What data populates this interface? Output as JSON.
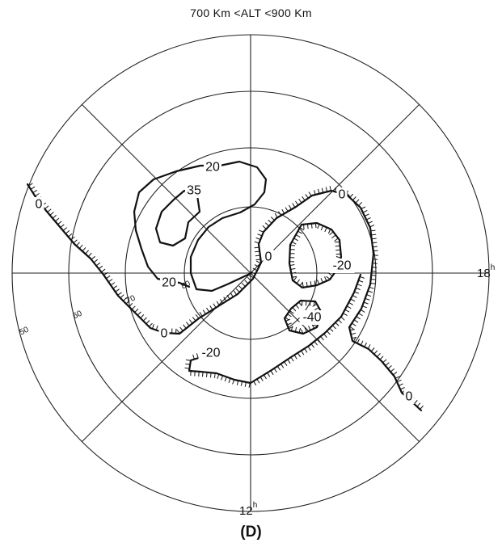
{
  "title": "700 Km <ALT <900 Km",
  "panel_label": "(D)",
  "chart_data": {
    "type": "contour",
    "projection": "polar",
    "latitude_rings": [
      "50",
      "60",
      "70",
      "80"
    ],
    "time_labels": [
      {
        "hour": "18",
        "unit": "h"
      },
      {
        "hour": "12",
        "unit": "h"
      }
    ],
    "contour_levels": [
      "35",
      "20",
      "0",
      "-20",
      "-40"
    ],
    "contours": [
      {
        "level": "35",
        "labels": [
          "35"
        ]
      },
      {
        "level": "20",
        "labels": [
          "20",
          "20"
        ]
      },
      {
        "level": "0",
        "labels": [
          "0",
          "0",
          "0",
          "0",
          "0"
        ]
      },
      {
        "level": "-20",
        "labels": [
          "-20",
          "-20"
        ]
      },
      {
        "level": "-40",
        "labels": [
          "-40"
        ]
      }
    ]
  }
}
